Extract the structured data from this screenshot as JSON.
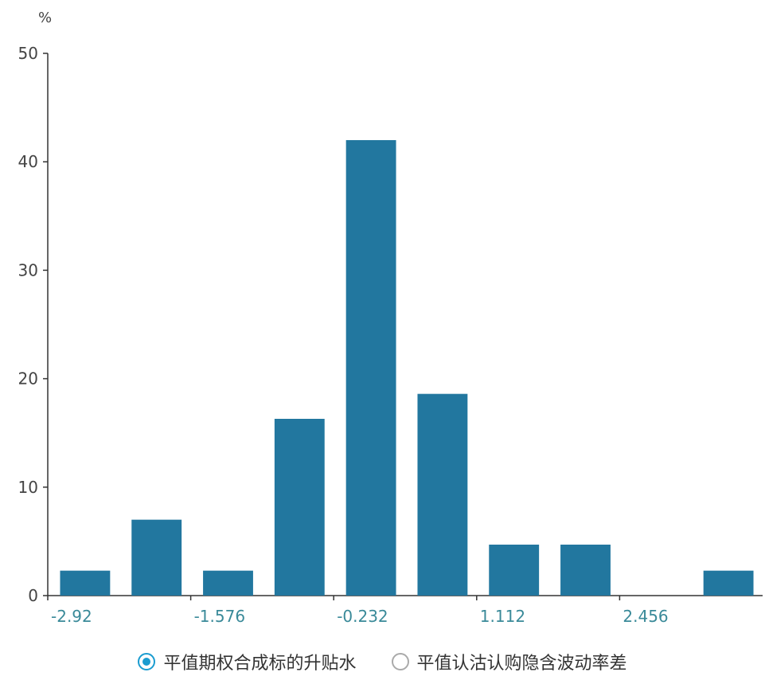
{
  "chart_data": {
    "type": "bar",
    "ylabel": "%",
    "ylim": [
      0,
      50
    ],
    "yticks": [
      "0",
      "10",
      "20",
      "30",
      "40",
      "50"
    ],
    "xticks": [
      "-2.92",
      "-1.576",
      "-0.232",
      "1.112",
      "2.456"
    ],
    "values": [
      2.3,
      7.0,
      2.3,
      16.3,
      42.0,
      18.6,
      4.7,
      4.7,
      0,
      2.3
    ],
    "grid": false,
    "colors": {
      "bar": "#22779f",
      "axis": "#333333",
      "xtick_text": "#3a8a99",
      "ytick_text": "#444444"
    }
  },
  "legend": {
    "items": [
      {
        "label": "平值期权合成标的升贴水",
        "selected": true
      },
      {
        "label": "平值认沽认购隐含波动率差",
        "selected": false
      }
    ]
  }
}
